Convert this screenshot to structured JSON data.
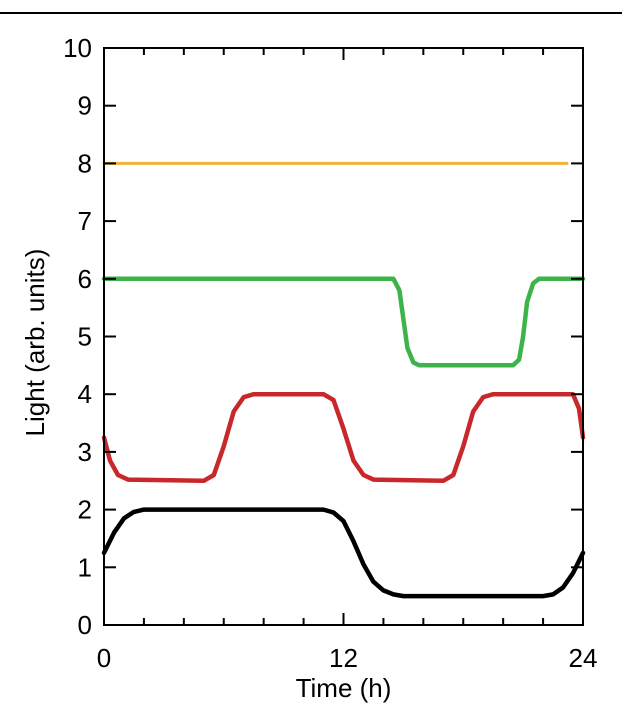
{
  "chart_data": {
    "type": "line",
    "xlabel": "Time (h)",
    "ylabel": "Light (arb. units)",
    "xlim": [
      0,
      24
    ],
    "ylim": [
      0,
      10
    ],
    "x_ticks": [
      0,
      12,
      24
    ],
    "y_ticks": [
      0,
      1,
      2,
      3,
      4,
      5,
      6,
      7,
      8,
      9,
      10
    ],
    "x_minor_step": 2,
    "grid": false,
    "series": [
      {
        "color": "#000000",
        "points": [
          [
            0,
            1.25
          ],
          [
            0.5,
            1.6
          ],
          [
            1,
            1.85
          ],
          [
            1.5,
            1.96
          ],
          [
            2,
            2.0
          ],
          [
            11,
            2.0
          ],
          [
            11.5,
            1.95
          ],
          [
            12,
            1.8
          ],
          [
            12.5,
            1.45
          ],
          [
            13,
            1.05
          ],
          [
            13.5,
            0.75
          ],
          [
            14,
            0.6
          ],
          [
            14.5,
            0.53
          ],
          [
            15,
            0.5
          ],
          [
            22,
            0.5
          ],
          [
            22.5,
            0.53
          ],
          [
            23,
            0.65
          ],
          [
            23.5,
            0.9
          ],
          [
            24,
            1.25
          ]
        ]
      },
      {
        "color": "#c8282c",
        "points": [
          [
            0,
            3.25
          ],
          [
            0.3,
            2.85
          ],
          [
            0.7,
            2.6
          ],
          [
            1.2,
            2.52
          ],
          [
            5,
            2.5
          ],
          [
            5.5,
            2.6
          ],
          [
            6,
            3.1
          ],
          [
            6.5,
            3.7
          ],
          [
            7,
            3.95
          ],
          [
            7.5,
            4.0
          ],
          [
            11,
            4.0
          ],
          [
            11.5,
            3.9
          ],
          [
            12,
            3.4
          ],
          [
            12.5,
            2.85
          ],
          [
            13,
            2.6
          ],
          [
            13.5,
            2.52
          ],
          [
            17,
            2.5
          ],
          [
            17.5,
            2.6
          ],
          [
            18,
            3.1
          ],
          [
            18.5,
            3.7
          ],
          [
            19,
            3.95
          ],
          [
            19.5,
            4.0
          ],
          [
            23.5,
            4.0
          ],
          [
            23.8,
            3.75
          ],
          [
            24,
            3.25
          ]
        ]
      },
      {
        "color": "#3cb44a",
        "points": [
          [
            0,
            6.0
          ],
          [
            14.5,
            6.0
          ],
          [
            14.8,
            5.8
          ],
          [
            15,
            5.3
          ],
          [
            15.2,
            4.8
          ],
          [
            15.5,
            4.55
          ],
          [
            15.8,
            4.5
          ],
          [
            20.5,
            4.5
          ],
          [
            20.8,
            4.6
          ],
          [
            21,
            5.0
          ],
          [
            21.2,
            5.6
          ],
          [
            21.5,
            5.92
          ],
          [
            21.8,
            6.0
          ],
          [
            24,
            6.0
          ]
        ]
      },
      {
        "color": "#f0b23c",
        "points": [
          [
            0,
            8.0
          ],
          [
            23.2,
            8.0
          ]
        ]
      }
    ]
  }
}
